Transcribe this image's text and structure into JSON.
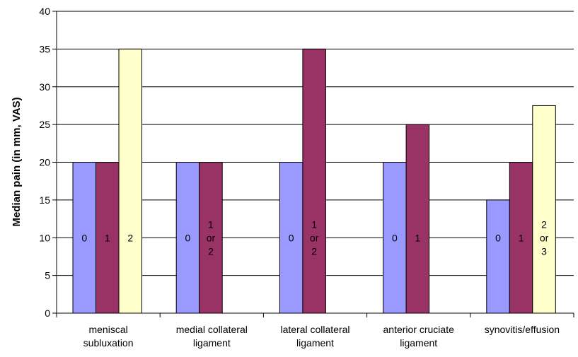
{
  "chart_data": {
    "type": "bar",
    "title": "",
    "xlabel": "",
    "ylabel": "Median pain (in mm, VAS)",
    "ylim": [
      0,
      40
    ],
    "yticks": [
      0,
      5,
      10,
      15,
      20,
      25,
      30,
      35,
      40
    ],
    "grid": true,
    "legend": "none",
    "colors": [
      "#9999ff",
      "#993366",
      "#ffffcc"
    ],
    "groups": [
      {
        "category": [
          "meniscal",
          "subluxation"
        ],
        "bars": [
          {
            "label": [
              "0"
            ],
            "value": 20
          },
          {
            "label": [
              "1"
            ],
            "value": 20
          },
          {
            "label": [
              "2"
            ],
            "value": 35
          }
        ]
      },
      {
        "category": [
          "medial collateral",
          "ligament"
        ],
        "bars": [
          {
            "label": [
              "0"
            ],
            "value": 20
          },
          {
            "label": [
              "1",
              "or",
              "2"
            ],
            "value": 20
          }
        ]
      },
      {
        "category": [
          "lateral collateral",
          "ligament"
        ],
        "bars": [
          {
            "label": [
              "0"
            ],
            "value": 20
          },
          {
            "label": [
              "1",
              "or",
              "2"
            ],
            "value": 35
          }
        ]
      },
      {
        "category": [
          "anterior cruciate",
          "ligament"
        ],
        "bars": [
          {
            "label": [
              "0"
            ],
            "value": 20
          },
          {
            "label": [
              "1"
            ],
            "value": 25
          }
        ]
      },
      {
        "category": [
          "synovitis/effusion"
        ],
        "bars": [
          {
            "label": [
              "0"
            ],
            "value": 15
          },
          {
            "label": [
              "1"
            ],
            "value": 20
          },
          {
            "label": [
              "2",
              "or",
              "3"
            ],
            "value": 27.5
          }
        ]
      }
    ]
  }
}
